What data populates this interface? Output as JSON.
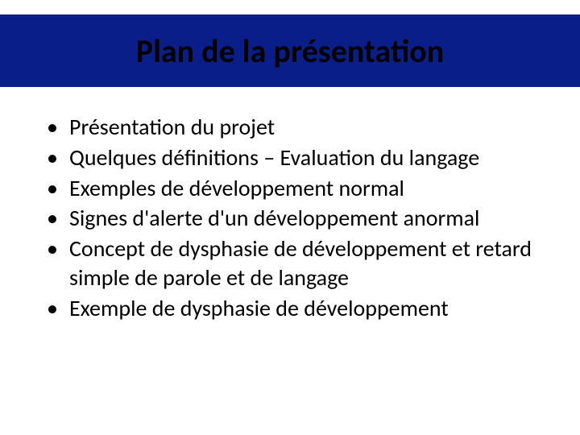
{
  "slide": {
    "title": "Plan de la présentation",
    "title_bar_color": "#0a1e8a",
    "title_fontsize": 40,
    "body_fontsize": 28,
    "body_line_height": 1.28,
    "text_color": "#000000",
    "background_color": "#ffffff",
    "bullets": [
      "Présentation du projet",
      "Quelques définitions – Evaluation du langage",
      "Exemples de développement normal",
      "Signes d'alerte d'un développement anormal",
      "Concept de dysphasie de développement et retard simple de parole et de langage",
      "Exemple de dysphasie de développement"
    ]
  }
}
